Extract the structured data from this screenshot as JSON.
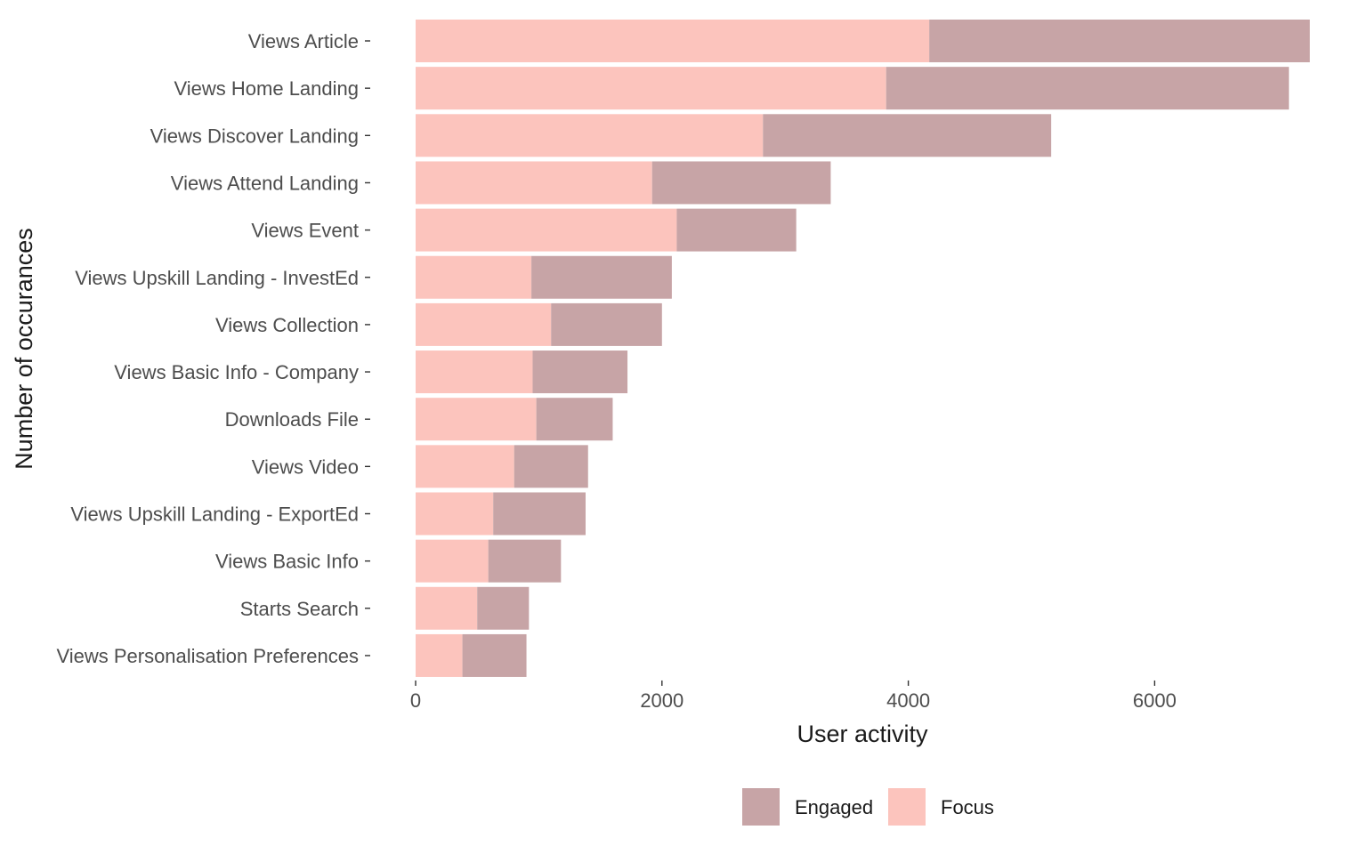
{
  "chart_data": {
    "type": "bar",
    "orientation": "horizontal",
    "stacked": true,
    "xlabel": "User activity",
    "ylabel": "Number of occurances",
    "xlim": [
      0,
      7300
    ],
    "xticks": [
      0,
      2000,
      4000,
      6000
    ],
    "xtick_labels": [
      "0",
      "2000",
      "4000",
      "6000"
    ],
    "grid": false,
    "legend_position": "bottom",
    "categories": [
      "Views Article",
      "Views Home Landing",
      "Views Discover Landing",
      "Views Attend Landing",
      "Views Event",
      "Views Upskill Landing - InvestEd",
      "Views Collection",
      "Views Basic Info - Company",
      "Downloads File",
      "Views Video",
      "Views Upskill Landing - ExportEd",
      "Views Basic Info",
      "Starts Search",
      "Views Personalisation Preferences"
    ],
    "series": [
      {
        "name": "Focus",
        "color": "#fcc4bd",
        "values": [
          4170,
          3820,
          2820,
          1920,
          2120,
          940,
          1100,
          950,
          980,
          800,
          630,
          590,
          500,
          380
        ]
      },
      {
        "name": "Engaged",
        "color": "#c7a4a6",
        "values": [
          3090,
          3270,
          2340,
          1450,
          970,
          1140,
          900,
          770,
          620,
          600,
          750,
          590,
          420,
          520
        ]
      }
    ],
    "legend": [
      {
        "name": "Engaged",
        "color": "#c7a4a6"
      },
      {
        "name": "Focus",
        "color": "#fcc4bd"
      }
    ]
  }
}
